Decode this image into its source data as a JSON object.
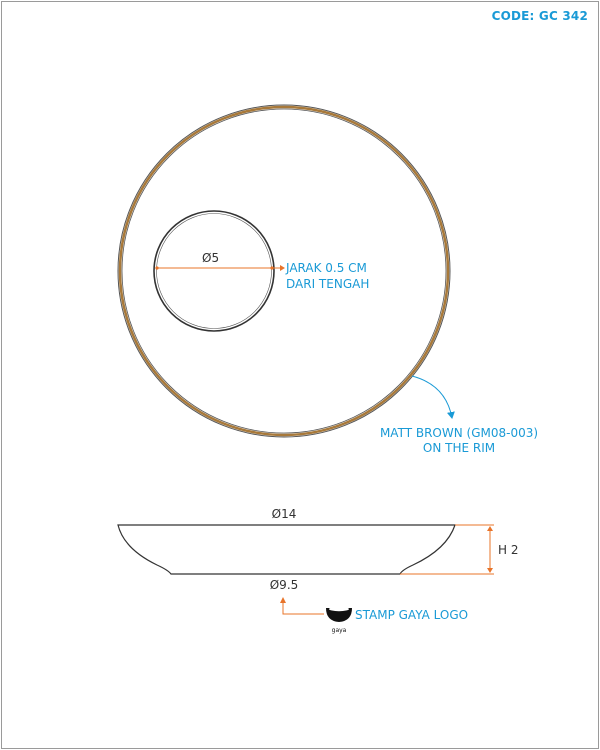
{
  "code": "CODE: GC 342",
  "top_view": {
    "inner_diameter_label": "Ø5",
    "offset_note_line1": "JARAK 0.5 CM",
    "offset_note_line2": "DARI TENGAH",
    "rim_note_line1": "MATT BROWN (GM08-003)",
    "rim_note_line2": "ON THE RIM"
  },
  "side_view": {
    "top_diameter_label": "Ø14",
    "base_diameter_label": "Ø9.5",
    "height_label": "H 2",
    "stamp_label": "STAMP GAYA LOGO",
    "logo_text": "gaya"
  },
  "colors": {
    "annotation": "#1a9ad6",
    "dimension_orange": "#e8742a",
    "rim_brown": "#a8793a",
    "outline": "#333333"
  }
}
